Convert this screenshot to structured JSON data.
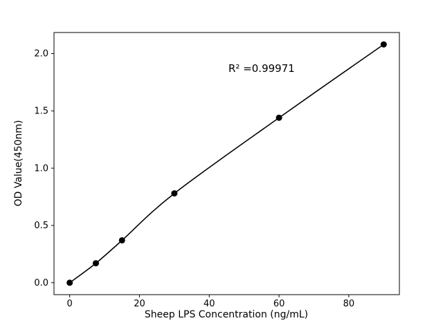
{
  "figure": {
    "background": "#ffffff"
  },
  "chart_data": {
    "type": "scatter",
    "title": "",
    "xlabel": "Sheep LPS Concentration (ng/mL)",
    "ylabel": "OD Value(450nm)",
    "x": [
      0,
      7.5,
      15,
      30,
      60,
      90
    ],
    "y": [
      0.0,
      0.17,
      0.37,
      0.78,
      1.44,
      2.08
    ],
    "fit_line": true,
    "annotation": {
      "text": "R² =0.99971",
      "x": 55,
      "y": 1.87
    },
    "xlim": [
      -4.5,
      94.5
    ],
    "ylim": [
      -0.104,
      2.184
    ],
    "xticks": [
      0,
      20,
      40,
      60,
      80
    ],
    "xtick_labels": [
      "0",
      "20",
      "40",
      "60",
      "80"
    ],
    "yticks": [
      0.0,
      0.5,
      1.0,
      1.5,
      2.0
    ],
    "ytick_labels": [
      "0.0",
      "0.5",
      "1.0",
      "1.5",
      "2.0"
    ],
    "grid": false,
    "legend_position": "none",
    "marker_color": "#000000",
    "line_color": "#000000",
    "axis_color": "#000000"
  }
}
